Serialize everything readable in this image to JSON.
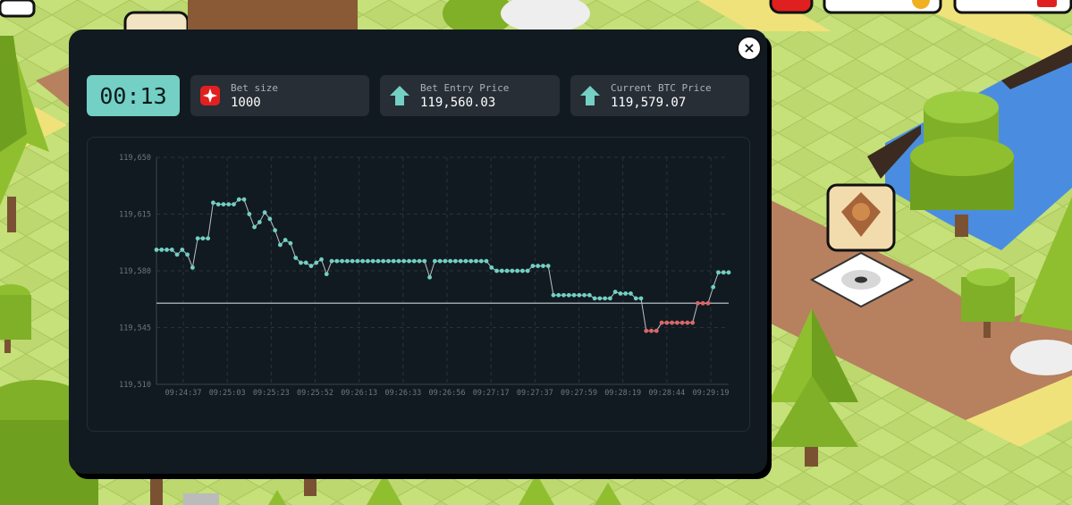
{
  "timer": {
    "value": "00:13"
  },
  "cards": [
    {
      "label": "Bet size",
      "value": "1000",
      "icon": "bet-token-icon"
    },
    {
      "label": "Bet Entry Price",
      "value": "119,560.03",
      "icon": "arrow-up-icon"
    },
    {
      "label": "Current BTC Price",
      "value": "119,579.07",
      "icon": "arrow-up-icon"
    }
  ],
  "close_label": "×",
  "colors": {
    "up": "#6fd0c3",
    "down": "#e06464",
    "accent": "#74cfc4",
    "baseline": "#9aa3ab"
  },
  "chart_data": {
    "type": "line",
    "ylim": [
      119510,
      119650
    ],
    "yticks": [
      "119,510",
      "119,545",
      "119,580",
      "119,615",
      "119,650"
    ],
    "xticks": [
      "09:24:37",
      "09:25:03",
      "09:25:23",
      "09:25:52",
      "09:26:13",
      "09:26:33",
      "09:26:56",
      "09:27:17",
      "09:27:37",
      "09:27:59",
      "09:28:19",
      "09:28:44",
      "09:29:19"
    ],
    "baseline": 119560.03,
    "grid": true,
    "series": [
      {
        "values": [
          119593,
          119593,
          119593,
          119593,
          119590,
          119593,
          119590,
          119582,
          119600,
          119600,
          119600,
          119622,
          119621,
          119621,
          119621,
          119621,
          119624,
          119624,
          119615,
          119607,
          119610,
          119616,
          119612,
          119605,
          119596,
          119599,
          119597,
          119588,
          119585,
          119585,
          119583,
          119585,
          119587,
          119578,
          119586,
          119586,
          119586,
          119586,
          119586,
          119586,
          119586,
          119586,
          119586,
          119586,
          119586,
          119586,
          119586,
          119586,
          119586,
          119586,
          119586,
          119586,
          119586,
          119576,
          119586,
          119586,
          119586,
          119586,
          119586,
          119586,
          119586,
          119586,
          119586,
          119586,
          119586,
          119582,
          119580,
          119580,
          119580,
          119580,
          119580,
          119580,
          119580,
          119583,
          119583,
          119583,
          119583,
          119565,
          119565,
          119565,
          119565,
          119565,
          119565,
          119565,
          119565,
          119563,
          119563,
          119563,
          119563,
          119567,
          119566,
          119566,
          119566,
          119563,
          119563,
          119543,
          119543,
          119543,
          119548,
          119548,
          119548,
          119548,
          119548,
          119548,
          119548,
          119560,
          119560,
          119560,
          119570,
          119579,
          119579,
          119579
        ]
      }
    ]
  }
}
